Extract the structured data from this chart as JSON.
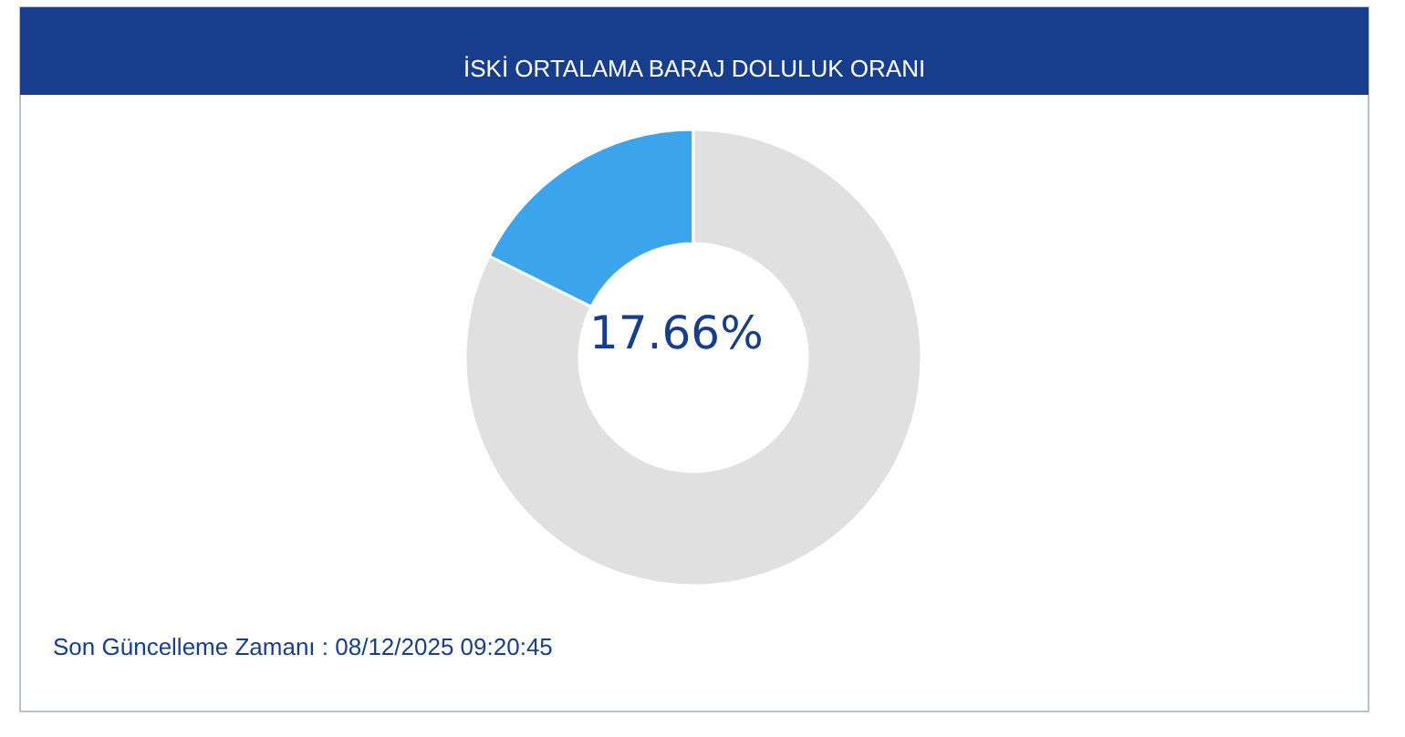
{
  "chart_data": {
    "type": "donut",
    "title": "İSKİ ORTALAMA BARAJ DOLULUK ORANI",
    "categories": [
      null,
      null
    ],
    "values": [
      17.66,
      82.34
    ],
    "colors": [
      "#3ba4ea",
      "#e0e0e0"
    ],
    "value_labels": [
      "17.66%",
      null
    ],
    "annotations": [
      "Son Güncelleme Zamanı : 08/12/2025 09:20:45"
    ],
    "legend": false
  }
}
